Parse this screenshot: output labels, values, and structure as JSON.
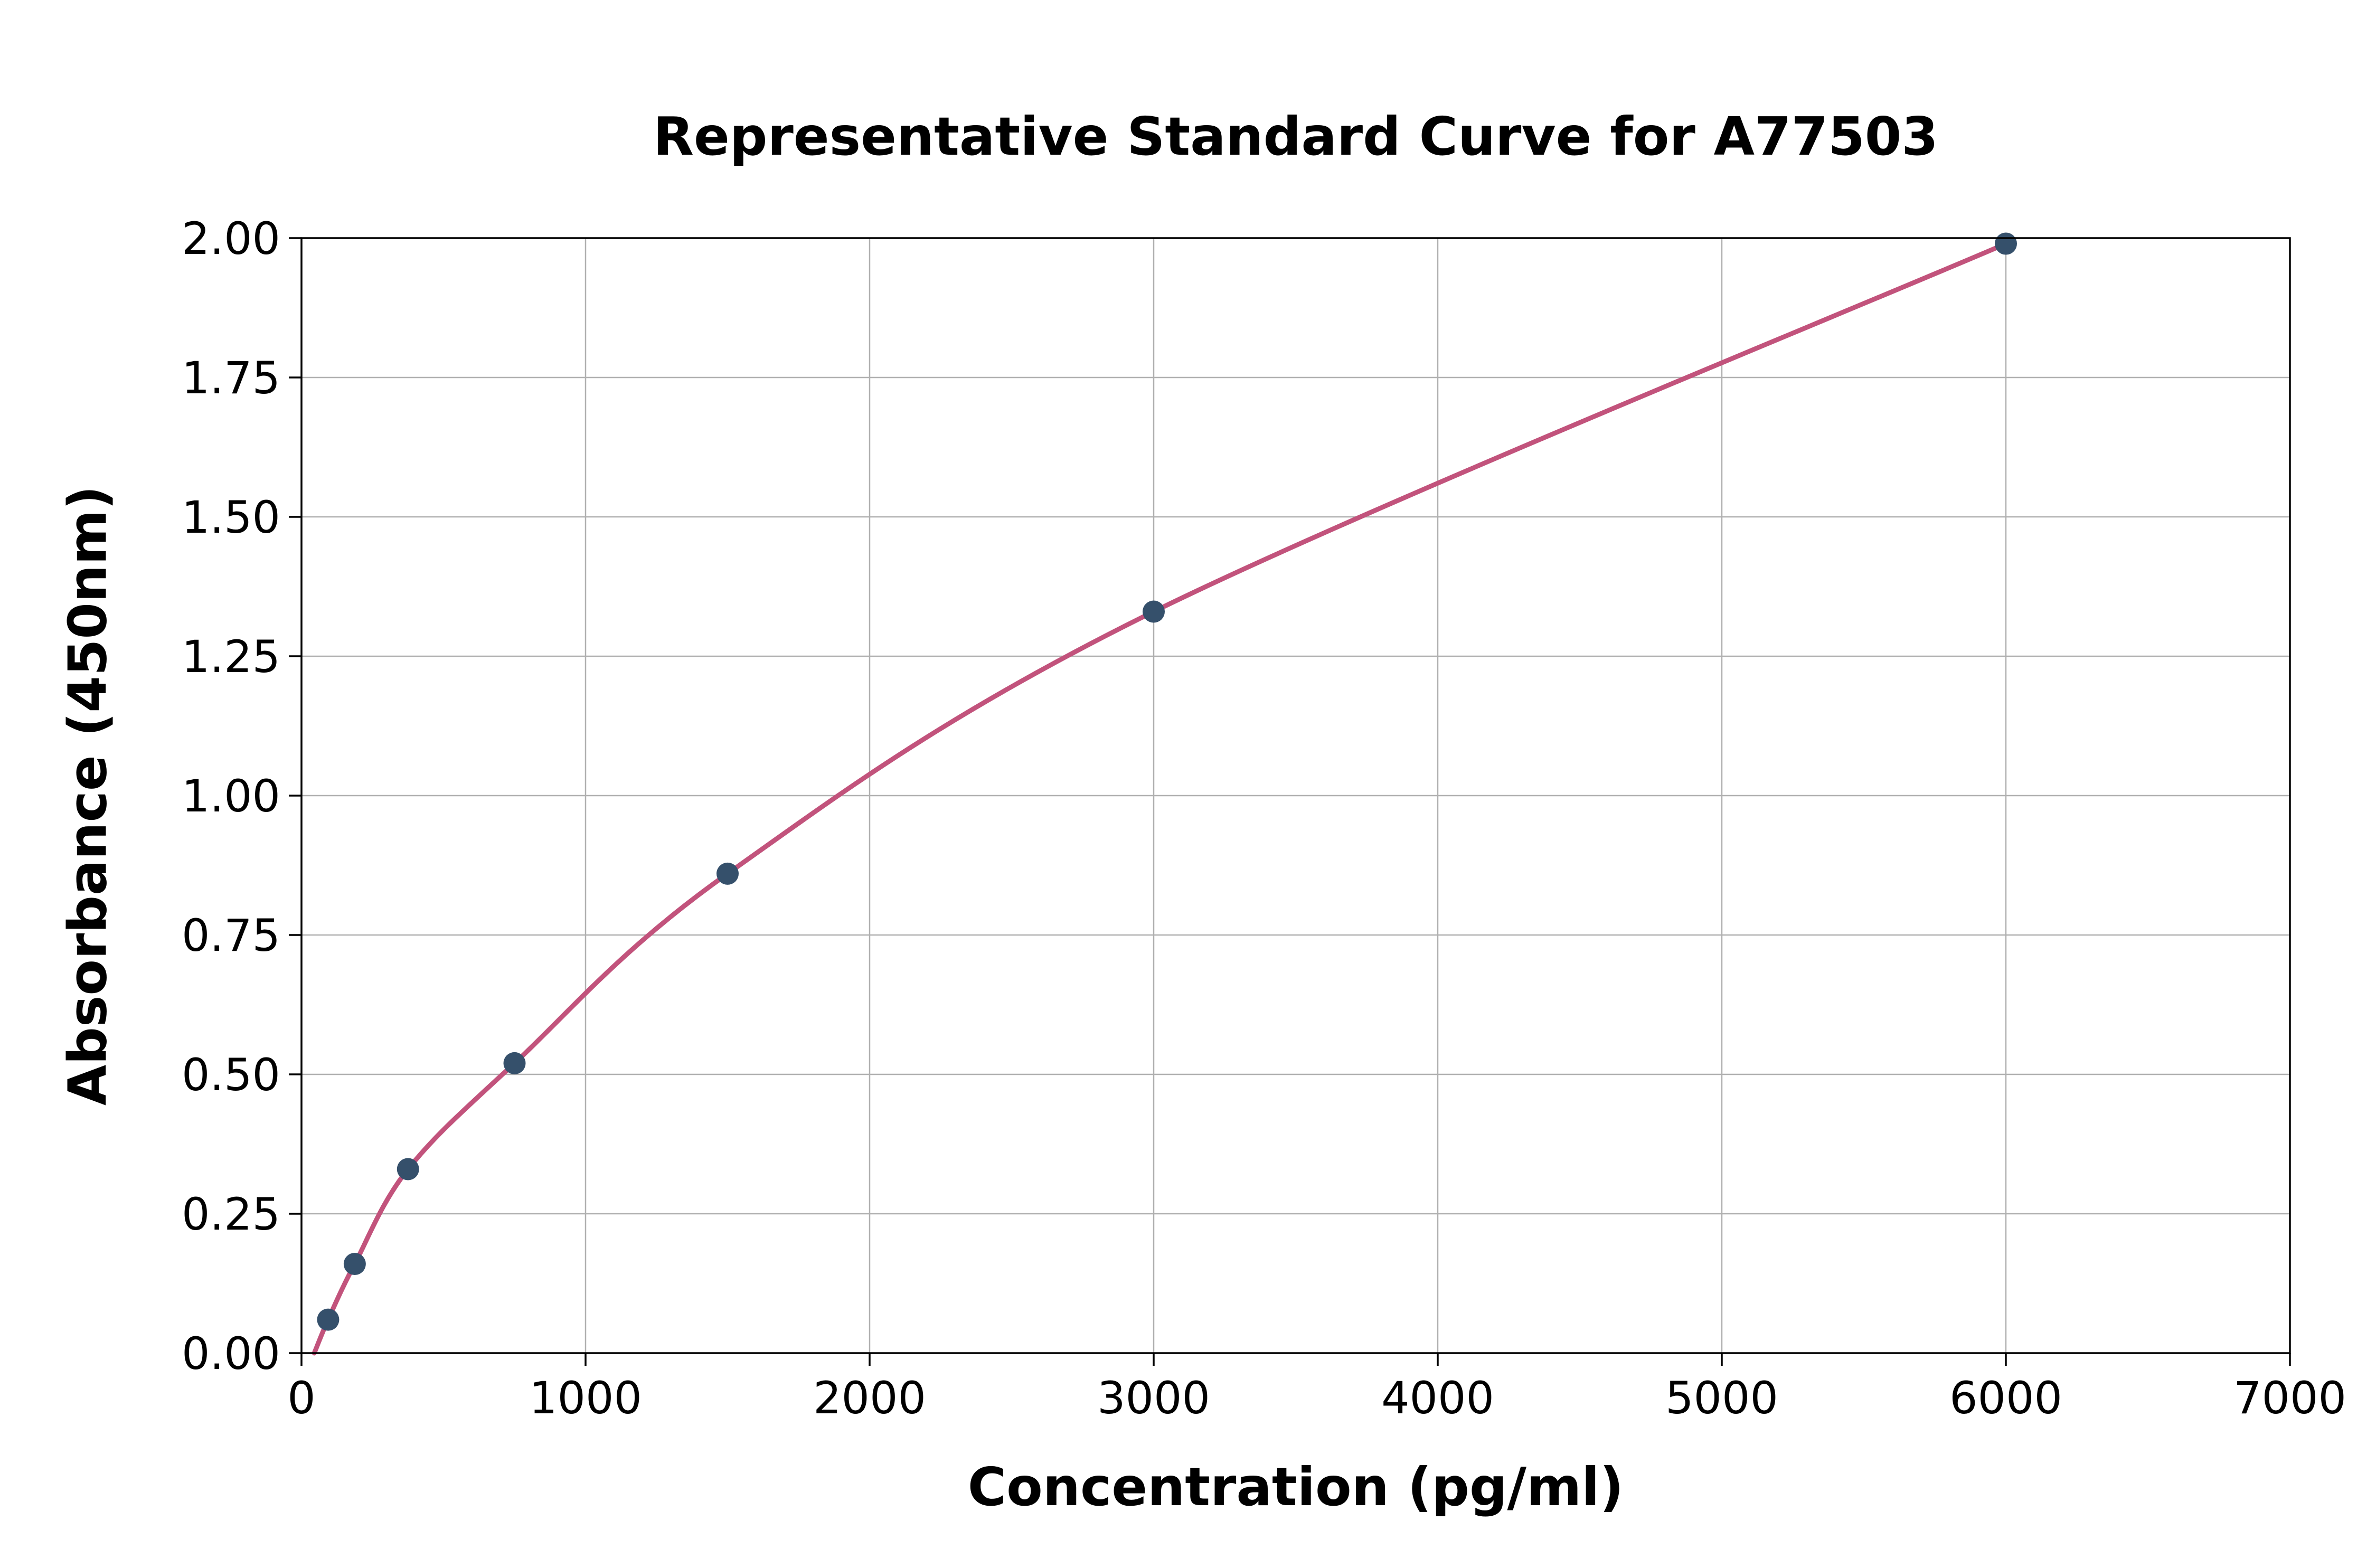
{
  "chart_data": {
    "type": "scatter",
    "title": "Representative Standard Curve for A77503",
    "xlabel": "Concentration (pg/ml)",
    "ylabel": "Absorbance (450nm)",
    "xlim": [
      0,
      7000
    ],
    "ylim": [
      0,
      2.0
    ],
    "grid": true,
    "legend": "none",
    "x_ticks": [
      0,
      1000,
      2000,
      3000,
      4000,
      5000,
      6000,
      7000
    ],
    "x_tick_labels": [
      "0",
      "1000",
      "2000",
      "3000",
      "4000",
      "5000",
      "6000",
      "7000"
    ],
    "y_ticks": [
      0.0,
      0.25,
      0.5,
      0.75,
      1.0,
      1.25,
      1.5,
      1.75,
      2.0
    ],
    "y_tick_labels": [
      "0.00",
      "0.25",
      "0.50",
      "0.75",
      "1.00",
      "1.25",
      "1.50",
      "1.75",
      "2.00"
    ],
    "points": {
      "x": [
        93.75,
        187.5,
        375,
        750,
        1500,
        3000,
        6000
      ],
      "y": [
        0.06,
        0.16,
        0.33,
        0.52,
        0.86,
        1.33,
        1.99
      ]
    },
    "fit_curve": {
      "x": [
        45,
        93.75,
        187.5,
        375,
        750,
        1500,
        3000,
        6000
      ],
      "y": [
        0.0,
        0.06,
        0.16,
        0.33,
        0.52,
        0.86,
        1.33,
        1.99
      ]
    },
    "colors": {
      "curve": "#c2537c",
      "points": "#35506b",
      "grid": "#b0b0b0",
      "axis": "#000000",
      "background": "#ffffff"
    }
  }
}
